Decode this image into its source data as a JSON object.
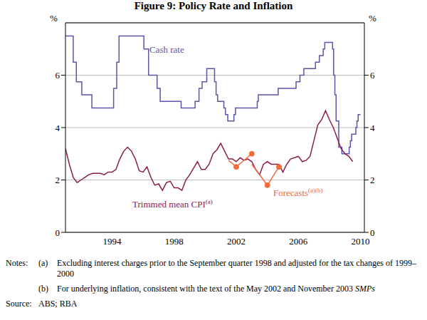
{
  "chart_data": {
    "type": "line",
    "title": "Figure 9: Policy Rate and Inflation",
    "ylabel": "%",
    "y2label": "%",
    "xlim": [
      1991.5,
      2010.75
    ],
    "xticks": [
      {
        "value": 1994.5,
        "label": "1994"
      },
      {
        "value": 1998.5,
        "label": "1998"
      },
      {
        "value": 2002.5,
        "label": "2002"
      },
      {
        "value": 2006.5,
        "label": "2006"
      },
      {
        "value": 2010.5,
        "label": "2010"
      }
    ],
    "ylim": [
      0,
      8
    ],
    "yticks": [
      0,
      2,
      4,
      6
    ],
    "y2lim": [
      0,
      8
    ],
    "y2ticks": [
      0,
      2,
      4,
      6
    ],
    "grid": true,
    "series": [
      {
        "name": "Cash rate",
        "label": {
          "text": "Cash rate",
          "sup": ""
        },
        "color": "#5a56a8",
        "line_style": "step",
        "x": [
          1991.5,
          1992.0,
          1992.2,
          1992.55,
          1993.2,
          1994.6,
          1994.8,
          1994.95,
          1996.55,
          1996.85,
          1997.4,
          1997.6,
          1998.95,
          1999.85,
          2000.1,
          2000.3,
          2000.6,
          2001.1,
          2001.2,
          2001.3,
          2001.7,
          2001.8,
          2001.95,
          2002.35,
          2002.45,
          2003.85,
          2003.92,
          2005.2,
          2006.35,
          2006.6,
          2006.85,
          2007.6,
          2007.85,
          2008.1,
          2008.2,
          2008.7,
          2008.77,
          2008.85,
          2008.93,
          2009.1,
          2009.3,
          2009.77,
          2009.85,
          2009.93,
          2010.2,
          2010.27,
          2010.35,
          2010.5
        ],
        "values": [
          7.5,
          6.5,
          5.75,
          5.25,
          4.75,
          5.5,
          6.5,
          7.5,
          7.0,
          6.0,
          5.5,
          5.0,
          4.75,
          5.0,
          5.5,
          5.75,
          6.25,
          5.75,
          5.25,
          5.0,
          4.75,
          4.5,
          4.25,
          4.5,
          4.75,
          5.0,
          5.25,
          5.5,
          5.75,
          6.0,
          6.25,
          6.5,
          6.75,
          7.0,
          7.25,
          7.0,
          6.0,
          5.25,
          4.25,
          3.25,
          3.0,
          3.25,
          3.5,
          3.75,
          4.0,
          4.25,
          4.5,
          4.5
        ]
      },
      {
        "name": "Trimmed mean CPI",
        "label": {
          "text": "Trimmed mean CPI",
          "sup": "(a)"
        },
        "color": "#8c1d4e",
        "line_style": "solid",
        "x": [
          1991.5,
          1991.75,
          1992.0,
          1992.25,
          1992.5,
          1992.75,
          1993.0,
          1993.25,
          1993.5,
          1993.75,
          1994.0,
          1994.25,
          1994.5,
          1994.75,
          1995.0,
          1995.25,
          1995.5,
          1995.75,
          1996.0,
          1996.25,
          1996.5,
          1996.75,
          1997.0,
          1997.25,
          1997.5,
          1997.75,
          1998.0,
          1998.25,
          1998.5,
          1998.75,
          1999.0,
          1999.25,
          1999.5,
          1999.75,
          2000.0,
          2000.25,
          2000.5,
          2000.75,
          2001.0,
          2001.25,
          2001.5,
          2001.75,
          2002.0,
          2002.25,
          2002.5,
          2002.75,
          2003.0,
          2003.25,
          2003.5,
          2003.75,
          2004.0,
          2004.25,
          2004.5,
          2004.75,
          2005.0,
          2005.25,
          2005.5,
          2005.75,
          2006.0,
          2006.25,
          2006.5,
          2006.75,
          2007.0,
          2007.25,
          2007.5,
          2007.75,
          2008.0,
          2008.25,
          2008.5,
          2008.75,
          2009.0,
          2009.25,
          2009.5,
          2009.75,
          2010.0
        ],
        "values": [
          3.2,
          2.6,
          2.1,
          1.9,
          2.0,
          2.1,
          2.2,
          2.25,
          2.25,
          2.25,
          2.2,
          2.3,
          2.3,
          2.4,
          2.8,
          3.1,
          3.25,
          3.1,
          2.8,
          2.35,
          2.3,
          2.5,
          2.1,
          1.8,
          1.85,
          1.6,
          1.9,
          1.95,
          1.7,
          1.7,
          1.6,
          2.0,
          2.2,
          2.45,
          2.7,
          2.4,
          2.4,
          2.6,
          3.0,
          3.15,
          3.4,
          3.1,
          2.8,
          2.8,
          2.7,
          2.85,
          2.75,
          2.8,
          2.7,
          2.4,
          2.2,
          2.6,
          2.7,
          2.6,
          2.6,
          2.6,
          2.3,
          2.6,
          2.8,
          2.85,
          2.9,
          2.7,
          2.75,
          2.9,
          3.5,
          4.1,
          4.3,
          4.65,
          4.3,
          4.0,
          3.6,
          3.2,
          3.0,
          2.9,
          2.7
        ]
      },
      {
        "name": "Forecasts",
        "label": {
          "text": "Forecasts",
          "sup": "(a)(b)"
        },
        "color": "#f26b3a",
        "line_style": "solid",
        "marker": "circle",
        "x": [
          2002.0,
          2002.5,
          2003.5,
          2003.5,
          2003.5,
          2004.5,
          2005.25
        ],
        "values": [
          2.75,
          2.5,
          3.0,
          null,
          2.6,
          1.8,
          2.5
        ]
      }
    ]
  },
  "notes": {
    "heading": "Notes:",
    "items": [
      {
        "label": "(a)",
        "text": "Excluding interest charges prior to the September quarter 1998 and adjusted for the tax changes of 1999–2000",
        "italic_suffix": ""
      },
      {
        "label": "(b)",
        "text": "For underlying inflation, consistent with the text of the May 2002 and November 2003 ",
        "italic_suffix": "SMPs"
      }
    ]
  },
  "source": {
    "heading": "Source:",
    "text": "ABS; RBA"
  }
}
